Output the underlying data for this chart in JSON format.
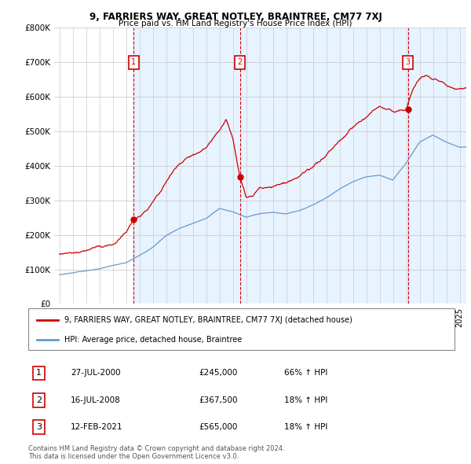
{
  "title": "9, FARRIERS WAY, GREAT NOTLEY, BRAINTREE, CM77 7XJ",
  "subtitle": "Price paid vs. HM Land Registry's House Price Index (HPI)",
  "ylim": [
    0,
    800000
  ],
  "yticks": [
    0,
    100000,
    200000,
    300000,
    400000,
    500000,
    600000,
    700000,
    800000
  ],
  "ytick_labels": [
    "£0",
    "£100K",
    "£200K",
    "£300K",
    "£400K",
    "£500K",
    "£600K",
    "£700K",
    "£800K"
  ],
  "hpi_color": "#6699cc",
  "hpi_fill_color": "#ddeeff",
  "price_color": "#cc0000",
  "vline_color": "#cc0000",
  "grid_color": "#cccccc",
  "background_color": "#ffffff",
  "xlim_left": 1994.6,
  "xlim_right": 2025.5,
  "transactions": [
    {
      "label": "1",
      "date_str": "27-JUL-2000",
      "year": 2000.57,
      "price": 245000
    },
    {
      "label": "2",
      "date_str": "16-JUL-2008",
      "year": 2008.54,
      "price": 367500
    },
    {
      "label": "3",
      "date_str": "12-FEB-2021",
      "year": 2021.12,
      "price": 565000
    }
  ],
  "legend_price_label": "9, FARRIERS WAY, GREAT NOTLEY, BRAINTREE, CM77 7XJ (detached house)",
  "legend_hpi_label": "HPI: Average price, detached house, Braintree",
  "footnote": "Contains HM Land Registry data © Crown copyright and database right 2024.\nThis data is licensed under the Open Government Licence v3.0.",
  "table_rows": [
    {
      "num": "1",
      "date": "27-JUL-2000",
      "price": "£245,000",
      "change": "66% ↑ HPI"
    },
    {
      "num": "2",
      "date": "16-JUL-2008",
      "price": "£367,500",
      "change": "18% ↑ HPI"
    },
    {
      "num": "3",
      "date": "12-FEB-2021",
      "price": "£565,000",
      "change": "18% ↑ HPI"
    }
  ],
  "hpi_key_points": {
    "years": [
      1995,
      1996,
      1997,
      1998,
      1999,
      2000,
      2001,
      2002,
      2003,
      2004,
      2005,
      2006,
      2007,
      2008,
      2009,
      2010,
      2011,
      2012,
      2013,
      2014,
      2015,
      2016,
      2017,
      2018,
      2019,
      2020,
      2021,
      2022,
      2023,
      2024,
      2025
    ],
    "prices": [
      85000,
      90000,
      97000,
      103000,
      112000,
      120000,
      142000,
      165000,
      200000,
      220000,
      235000,
      250000,
      280000,
      270000,
      255000,
      265000,
      270000,
      265000,
      275000,
      290000,
      310000,
      335000,
      355000,
      370000,
      375000,
      360000,
      410000,
      470000,
      490000,
      470000,
      455000
    ]
  },
  "price_key_points": {
    "years": [
      1995,
      1997,
      1999,
      2000.0,
      2000.57,
      2001,
      2002,
      2003,
      2004,
      2005,
      2006,
      2007.0,
      2007.5,
      2008.0,
      2008.54,
      2009.0,
      2009.5,
      2010,
      2011,
      2012,
      2013,
      2014,
      2015,
      2016,
      2017,
      2018,
      2019.0,
      2019.5,
      2020,
      2021.0,
      2021.12,
      2021.5,
      2022.0,
      2022.5,
      2023.0,
      2023.5,
      2024.0,
      2024.5,
      2025.0
    ],
    "prices": [
      145000,
      150000,
      175000,
      210000,
      245000,
      260000,
      310000,
      370000,
      420000,
      440000,
      460000,
      510000,
      545000,
      490000,
      367500,
      310000,
      310000,
      340000,
      350000,
      360000,
      370000,
      390000,
      420000,
      460000,
      500000,
      530000,
      555000,
      545000,
      540000,
      550000,
      565000,
      610000,
      640000,
      650000,
      640000,
      640000,
      625000,
      620000,
      625000
    ]
  }
}
